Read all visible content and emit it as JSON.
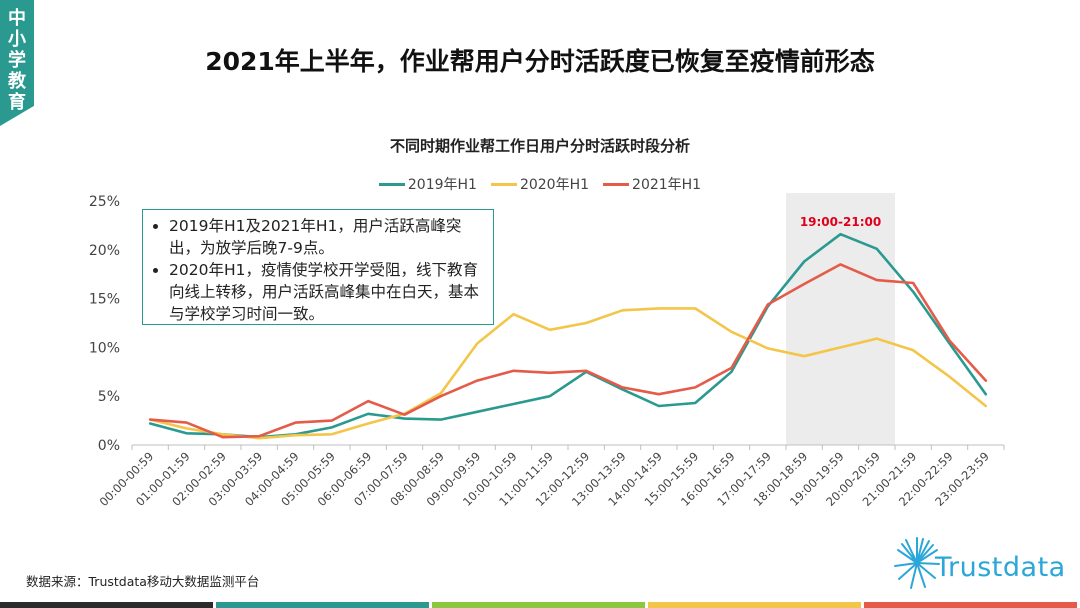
{
  "side_tab": {
    "label": "中小学教育"
  },
  "page": {
    "title": "2021年上半年，作业帮用户分时活跃度已恢复至疫情前形态",
    "source": "数据来源：Trustdata移动大数据监测平台",
    "logo_text": "Trustdata"
  },
  "notes": [
    "2019年H1及2021年H1，用户活跃高峰突出，为放学后晚7-9点。",
    "2020年H1，疫情使学校开学受阻，线下教育向线上转移，用户活跃高峰集中在白天，基本与学校学习时间一致。"
  ],
  "colors": {
    "accent": "#2a9a90",
    "bottom_bar": [
      "#2b2b2b",
      "#2a9a90",
      "#8dc63f",
      "#f3c64a",
      "#e45b4a"
    ]
  },
  "chart_data": {
    "type": "line",
    "title": "不同时期作业帮工作日用户分时活跃时段分析",
    "xlabel": "",
    "ylabel": "",
    "ylim": [
      0,
      25
    ],
    "y_ticks": [
      "0%",
      "5%",
      "10%",
      "15%",
      "20%",
      "25%"
    ],
    "grid": false,
    "legend_position": "top-center",
    "categories": [
      "00:00-00:59",
      "01:00-01:59",
      "02:00-02:59",
      "03:00-03:59",
      "04:00-04:59",
      "05:00-05:59",
      "06:00-06:59",
      "07:00-07:59",
      "08:00-08:59",
      "09:00-09:59",
      "10:00-10:59",
      "11:00-11:59",
      "12:00-12:59",
      "13:00-13:59",
      "14:00-14:59",
      "15:00-15:59",
      "16:00-16:59",
      "17:00-17:59",
      "18:00-18:59",
      "19:00-19:59",
      "20:00-20:59",
      "21:00-21:59",
      "22:00-22:59",
      "23:00-23:59"
    ],
    "series": [
      {
        "name": "2019年H1",
        "color": "#2a9a90",
        "values": [
          2.2,
          1.2,
          1.1,
          0.8,
          1.1,
          1.8,
          3.2,
          2.7,
          2.6,
          3.4,
          4.2,
          5.0,
          7.5,
          5.7,
          4.0,
          4.3,
          7.5,
          14.2,
          18.8,
          21.6,
          20.1,
          15.7,
          10.4,
          5.2
        ]
      },
      {
        "name": "2020年H1",
        "color": "#f3c64a",
        "values": [
          2.6,
          1.7,
          1.1,
          0.7,
          1.0,
          1.1,
          2.2,
          3.2,
          5.3,
          10.4,
          13.4,
          11.8,
          12.5,
          13.8,
          14.0,
          14.0,
          11.6,
          9.9,
          9.1,
          10.0,
          10.9,
          9.7,
          7.0,
          4.0
        ]
      },
      {
        "name": "2021年H1",
        "color": "#e45b4a",
        "values": [
          2.6,
          2.3,
          0.8,
          0.9,
          2.3,
          2.5,
          4.5,
          3.1,
          5.0,
          6.6,
          7.6,
          7.4,
          7.6,
          5.9,
          5.2,
          5.9,
          7.9,
          14.4,
          16.5,
          18.5,
          16.9,
          16.6,
          10.7,
          6.6
        ]
      }
    ],
    "highlight": {
      "from": "18:00-18:59",
      "to": "20:00-20:59",
      "label": "19:00-21:00",
      "label_color": "#e0001b"
    }
  }
}
